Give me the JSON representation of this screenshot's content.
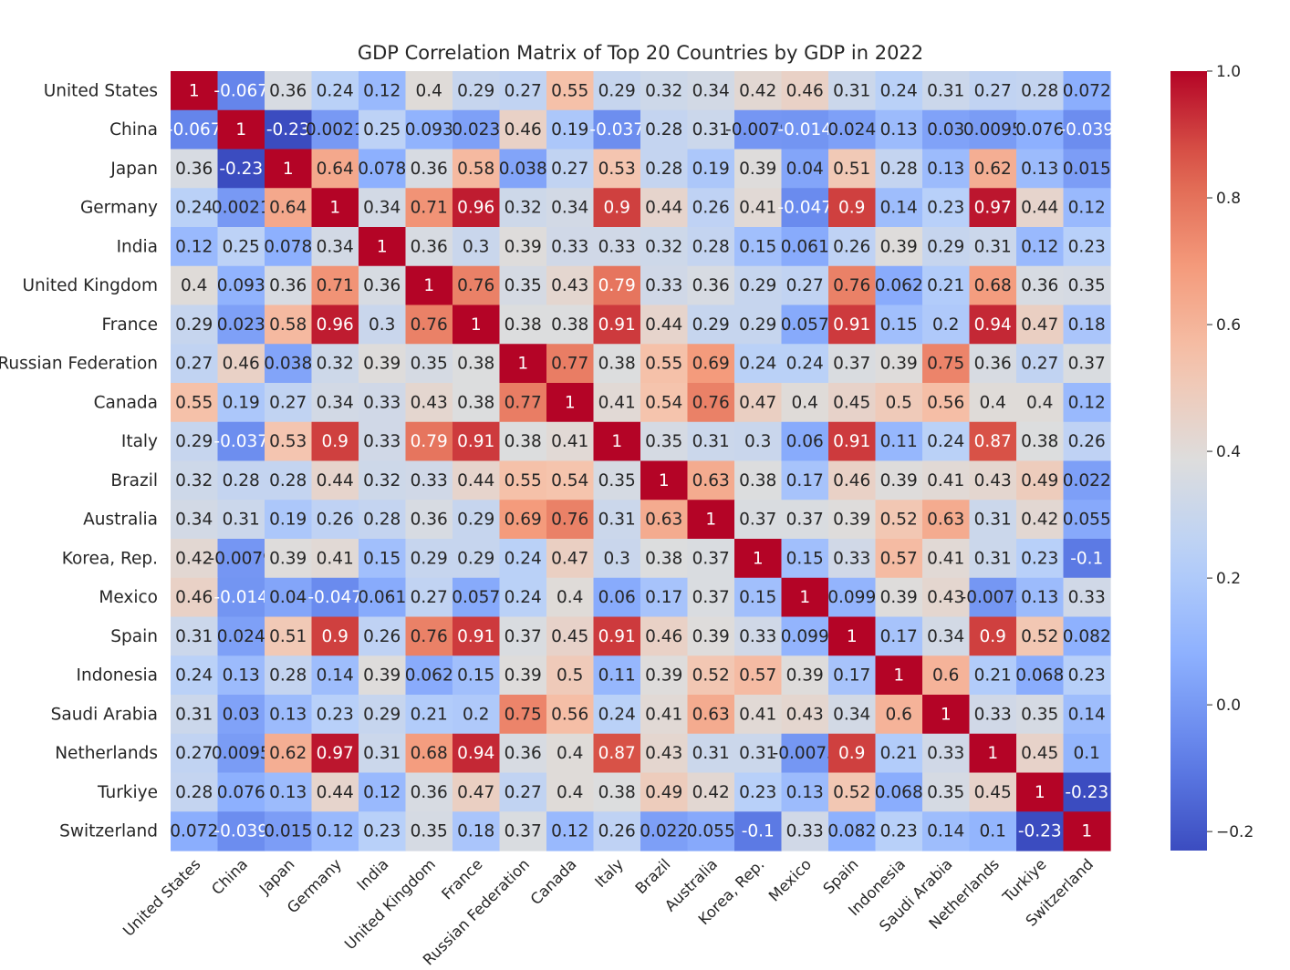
{
  "chart_data": {
    "type": "heatmap",
    "title": "GDP Correlation Matrix of Top 20 Countries by GDP in 2022",
    "rows": [
      "United States",
      "China",
      "Japan",
      "Germany",
      "India",
      "United Kingdom",
      "France",
      "Russian Federation",
      "Canada",
      "Italy",
      "Brazil",
      "Australia",
      "Korea, Rep.",
      "Mexico",
      "Spain",
      "Indonesia",
      "Saudi Arabia",
      "Netherlands",
      "Turkiye",
      "Switzerland"
    ],
    "columns": [
      "United States",
      "China",
      "Japan",
      "Germany",
      "India",
      "United Kingdom",
      "France",
      "Russian Federation",
      "Canada",
      "Italy",
      "Brazil",
      "Australia",
      "Korea, Rep.",
      "Mexico",
      "Spain",
      "Indonesia",
      "Saudi Arabia",
      "Netherlands",
      "Turkiye",
      "Switzerland"
    ],
    "values": [
      [
        1,
        -0.067,
        0.36,
        0.24,
        0.12,
        0.4,
        0.29,
        0.27,
        0.55,
        0.29,
        0.32,
        0.34,
        0.42,
        0.46,
        0.31,
        0.24,
        0.31,
        0.27,
        0.28,
        0.072
      ],
      [
        -0.067,
        1,
        -0.23,
        0.0021,
        0.25,
        0.093,
        0.023,
        0.46,
        0.19,
        -0.037,
        0.28,
        0.31,
        -0.0079,
        -0.014,
        0.024,
        0.13,
        0.03,
        0.0095,
        0.076,
        -0.039
      ],
      [
        0.36,
        -0.23,
        1,
        0.64,
        0.078,
        0.36,
        0.58,
        0.038,
        0.27,
        0.53,
        0.28,
        0.19,
        0.39,
        0.04,
        0.51,
        0.28,
        0.13,
        0.62,
        0.13,
        0.015
      ],
      [
        0.24,
        0.0021,
        0.64,
        1,
        0.34,
        0.71,
        0.96,
        0.32,
        0.34,
        0.9,
        0.44,
        0.26,
        0.41,
        -0.047,
        0.9,
        0.14,
        0.23,
        0.97,
        0.44,
        0.12
      ],
      [
        0.12,
        0.25,
        0.078,
        0.34,
        1,
        0.36,
        0.3,
        0.39,
        0.33,
        0.33,
        0.32,
        0.28,
        0.15,
        0.061,
        0.26,
        0.39,
        0.29,
        0.31,
        0.12,
        0.23
      ],
      [
        0.4,
        0.093,
        0.36,
        0.71,
        0.36,
        1,
        0.76,
        0.35,
        0.43,
        0.79,
        0.33,
        0.36,
        0.29,
        0.27,
        0.76,
        0.062,
        0.21,
        0.68,
        0.36,
        0.35
      ],
      [
        0.29,
        0.023,
        0.58,
        0.96,
        0.3,
        0.76,
        1,
        0.38,
        0.38,
        0.91,
        0.44,
        0.29,
        0.29,
        0.057,
        0.91,
        0.15,
        0.2,
        0.94,
        0.47,
        0.18
      ],
      [
        0.27,
        0.46,
        0.038,
        0.32,
        0.39,
        0.35,
        0.38,
        1,
        0.77,
        0.38,
        0.55,
        0.69,
        0.24,
        0.24,
        0.37,
        0.39,
        0.75,
        0.36,
        0.27,
        0.37
      ],
      [
        0.55,
        0.19,
        0.27,
        0.34,
        0.33,
        0.43,
        0.38,
        0.77,
        1,
        0.41,
        0.54,
        0.76,
        0.47,
        0.4,
        0.45,
        0.5,
        0.56,
        0.4,
        0.4,
        0.12
      ],
      [
        0.29,
        -0.037,
        0.53,
        0.9,
        0.33,
        0.79,
        0.91,
        0.38,
        0.41,
        1,
        0.35,
        0.31,
        0.3,
        0.06,
        0.91,
        0.11,
        0.24,
        0.87,
        0.38,
        0.26
      ],
      [
        0.32,
        0.28,
        0.28,
        0.44,
        0.32,
        0.33,
        0.44,
        0.55,
        0.54,
        0.35,
        1,
        0.63,
        0.38,
        0.17,
        0.46,
        0.39,
        0.41,
        0.43,
        0.49,
        0.022
      ],
      [
        0.34,
        0.31,
        0.19,
        0.26,
        0.28,
        0.36,
        0.29,
        0.69,
        0.76,
        0.31,
        0.63,
        1,
        0.37,
        0.37,
        0.39,
        0.52,
        0.63,
        0.31,
        0.42,
        0.055
      ],
      [
        0.42,
        -0.0079,
        0.39,
        0.41,
        0.15,
        0.29,
        0.29,
        0.24,
        0.47,
        0.3,
        0.38,
        0.37,
        1,
        0.15,
        0.33,
        0.57,
        0.41,
        0.31,
        0.23,
        -0.1
      ],
      [
        0.46,
        -0.014,
        0.04,
        -0.047,
        0.061,
        0.27,
        0.057,
        0.24,
        0.4,
        0.06,
        0.17,
        0.37,
        0.15,
        1,
        0.099,
        0.39,
        0.43,
        -0.0073,
        0.13,
        0.33
      ],
      [
        0.31,
        0.024,
        0.51,
        0.9,
        0.26,
        0.76,
        0.91,
        0.37,
        0.45,
        0.91,
        0.46,
        0.39,
        0.33,
        0.099,
        1,
        0.17,
        0.34,
        0.9,
        0.52,
        0.082
      ],
      [
        0.24,
        0.13,
        0.28,
        0.14,
        0.39,
        0.062,
        0.15,
        0.39,
        0.5,
        0.11,
        0.39,
        0.52,
        0.57,
        0.39,
        0.17,
        1,
        0.6,
        0.21,
        0.068,
        0.23
      ],
      [
        0.31,
        0.03,
        0.13,
        0.23,
        0.29,
        0.21,
        0.2,
        0.75,
        0.56,
        0.24,
        0.41,
        0.63,
        0.41,
        0.43,
        0.34,
        0.6,
        1,
        0.33,
        0.35,
        0.14
      ],
      [
        0.27,
        0.0095,
        0.62,
        0.97,
        0.31,
        0.68,
        0.94,
        0.36,
        0.4,
        0.87,
        0.43,
        0.31,
        0.31,
        -0.0073,
        0.9,
        0.21,
        0.33,
        1,
        0.45,
        0.1
      ],
      [
        0.28,
        0.076,
        0.13,
        0.44,
        0.12,
        0.36,
        0.47,
        0.27,
        0.4,
        0.38,
        0.49,
        0.42,
        0.23,
        0.13,
        0.52,
        0.068,
        0.35,
        0.45,
        1,
        -0.23
      ],
      [
        0.072,
        -0.039,
        0.015,
        0.12,
        0.23,
        0.35,
        0.18,
        0.37,
        0.12,
        0.26,
        0.022,
        0.055,
        -0.1,
        0.33,
        0.082,
        0.23,
        0.14,
        0.1,
        -0.23,
        1
      ]
    ],
    "display_labels": [
      [
        "1",
        "-0.067",
        "0.36",
        "0.24",
        "0.12",
        "0.4",
        "0.29",
        "0.27",
        "0.55",
        "0.29",
        "0.32",
        "0.34",
        "0.42",
        "0.46",
        "0.31",
        "0.24",
        "0.31",
        "0.27",
        "0.28",
        "0.072"
      ],
      [
        "-0.067",
        "1",
        "-0.23",
        "0.0021",
        "0.25",
        "0.093",
        "0.023",
        "0.46",
        "0.19",
        "-0.037",
        "0.28",
        "0.31",
        "-0.0079",
        "-0.014",
        "0.024",
        "0.13",
        "0.03",
        "0.0095",
        "0.076",
        "-0.039"
      ],
      [
        "0.36",
        "-0.23",
        "1",
        "0.64",
        "0.078",
        "0.36",
        "0.58",
        "0.038",
        "0.27",
        "0.53",
        "0.28",
        "0.19",
        "0.39",
        "0.04",
        "0.51",
        "0.28",
        "0.13",
        "0.62",
        "0.13",
        "0.015"
      ],
      [
        "0.24",
        "0.0021",
        "0.64",
        "1",
        "0.34",
        "0.71",
        "0.96",
        "0.32",
        "0.34",
        "0.9",
        "0.44",
        "0.26",
        "0.41",
        "-0.047",
        "0.9",
        "0.14",
        "0.23",
        "0.97",
        "0.44",
        "0.12"
      ],
      [
        "0.12",
        "0.25",
        "0.078",
        "0.34",
        "1",
        "0.36",
        "0.3",
        "0.39",
        "0.33",
        "0.33",
        "0.32",
        "0.28",
        "0.15",
        "0.061",
        "0.26",
        "0.39",
        "0.29",
        "0.31",
        "0.12",
        "0.23"
      ],
      [
        "0.4",
        "0.093",
        "0.36",
        "0.71",
        "0.36",
        "1",
        "0.76",
        "0.35",
        "0.43",
        "0.79",
        "0.33",
        "0.36",
        "0.29",
        "0.27",
        "0.76",
        "0.062",
        "0.21",
        "0.68",
        "0.36",
        "0.35"
      ],
      [
        "0.29",
        "0.023",
        "0.58",
        "0.96",
        "0.3",
        "0.76",
        "1",
        "0.38",
        "0.38",
        "0.91",
        "0.44",
        "0.29",
        "0.29",
        "0.057",
        "0.91",
        "0.15",
        "0.2",
        "0.94",
        "0.47",
        "0.18"
      ],
      [
        "0.27",
        "0.46",
        "0.038",
        "0.32",
        "0.39",
        "0.35",
        "0.38",
        "1",
        "0.77",
        "0.38",
        "0.55",
        "0.69",
        "0.24",
        "0.24",
        "0.37",
        "0.39",
        "0.75",
        "0.36",
        "0.27",
        "0.37"
      ],
      [
        "0.55",
        "0.19",
        "0.27",
        "0.34",
        "0.33",
        "0.43",
        "0.38",
        "0.77",
        "1",
        "0.41",
        "0.54",
        "0.76",
        "0.47",
        "0.4",
        "0.45",
        "0.5",
        "0.56",
        "0.4",
        "0.4",
        "0.12"
      ],
      [
        "0.29",
        "-0.037",
        "0.53",
        "0.9",
        "0.33",
        "0.79",
        "0.91",
        "0.38",
        "0.41",
        "1",
        "0.35",
        "0.31",
        "0.3",
        "0.06",
        "0.91",
        "0.11",
        "0.24",
        "0.87",
        "0.38",
        "0.26"
      ],
      [
        "0.32",
        "0.28",
        "0.28",
        "0.44",
        "0.32",
        "0.33",
        "0.44",
        "0.55",
        "0.54",
        "0.35",
        "1",
        "0.63",
        "0.38",
        "0.17",
        "0.46",
        "0.39",
        "0.41",
        "0.43",
        "0.49",
        "0.022"
      ],
      [
        "0.34",
        "0.31",
        "0.19",
        "0.26",
        "0.28",
        "0.36",
        "0.29",
        "0.69",
        "0.76",
        "0.31",
        "0.63",
        "1",
        "0.37",
        "0.37",
        "0.39",
        "0.52",
        "0.63",
        "0.31",
        "0.42",
        "0.055"
      ],
      [
        "0.42",
        "-0.0079",
        "0.39",
        "0.41",
        "0.15",
        "0.29",
        "0.29",
        "0.24",
        "0.47",
        "0.3",
        "0.38",
        "0.37",
        "1",
        "0.15",
        "0.33",
        "0.57",
        "0.41",
        "0.31",
        "0.23",
        "-0.1"
      ],
      [
        "0.46",
        "-0.014",
        "0.04",
        "-0.047",
        "0.061",
        "0.27",
        "0.057",
        "0.24",
        "0.4",
        "0.06",
        "0.17",
        "0.37",
        "0.15",
        "1",
        "0.099",
        "0.39",
        "0.43",
        "-0.0073",
        "0.13",
        "0.33"
      ],
      [
        "0.31",
        "0.024",
        "0.51",
        "0.9",
        "0.26",
        "0.76",
        "0.91",
        "0.37",
        "0.45",
        "0.91",
        "0.46",
        "0.39",
        "0.33",
        "0.099",
        "1",
        "0.17",
        "0.34",
        "0.9",
        "0.52",
        "0.082"
      ],
      [
        "0.24",
        "0.13",
        "0.28",
        "0.14",
        "0.39",
        "0.062",
        "0.15",
        "0.39",
        "0.5",
        "0.11",
        "0.39",
        "0.52",
        "0.57",
        "0.39",
        "0.17",
        "1",
        "0.6",
        "0.21",
        "0.068",
        "0.23"
      ],
      [
        "0.31",
        "0.03",
        "0.13",
        "0.23",
        "0.29",
        "0.21",
        "0.2",
        "0.75",
        "0.56",
        "0.24",
        "0.41",
        "0.63",
        "0.41",
        "0.43",
        "0.34",
        "0.6",
        "1",
        "0.33",
        "0.35",
        "0.14"
      ],
      [
        "0.27",
        "0.0095",
        "0.62",
        "0.97",
        "0.31",
        "0.68",
        "0.94",
        "0.36",
        "0.4",
        "0.87",
        "0.43",
        "0.31",
        "0.31",
        "-0.0073",
        "0.9",
        "0.21",
        "0.33",
        "1",
        "0.45",
        "0.1"
      ],
      [
        "0.28",
        "0.076",
        "0.13",
        "0.44",
        "0.12",
        "0.36",
        "0.47",
        "0.27",
        "0.4",
        "0.38",
        "0.49",
        "0.42",
        "0.23",
        "0.13",
        "0.52",
        "0.068",
        "0.35",
        "0.45",
        "1",
        "-0.23"
      ],
      [
        "0.072",
        "-0.039",
        "0.015",
        "0.12",
        "0.23",
        "0.35",
        "0.18",
        "0.37",
        "0.12",
        "0.26",
        "0.022",
        "0.055",
        "-0.1",
        "0.33",
        "0.082",
        "0.23",
        "0.14",
        "0.1",
        "-0.23",
        "1"
      ]
    ],
    "colormap": "coolwarm",
    "colorbar": {
      "range": [
        -0.23,
        1.0
      ],
      "ticks": [
        1.0,
        0.8,
        0.6,
        0.4,
        0.2,
        0.0,
        -0.2
      ],
      "tick_labels": [
        "1.0",
        "0.8",
        "0.6",
        "0.4",
        "0.2",
        "0.0",
        "−0.2"
      ]
    },
    "annotated": true,
    "grid": false
  }
}
